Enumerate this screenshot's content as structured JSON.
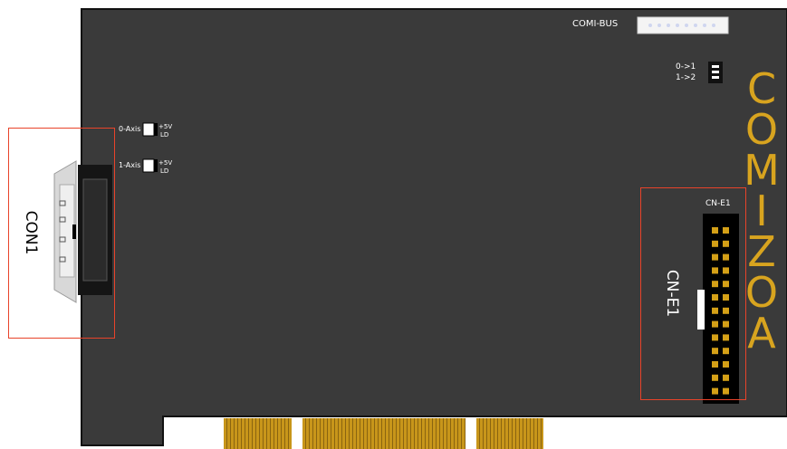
{
  "board": {
    "comi_bus_label": "COMI-BUS",
    "jumper_label_a": "0->1",
    "jumper_label_b": "1->2",
    "axis0_label": "0-Axis",
    "axis1_label": "1-Axis",
    "led_top": "+5V",
    "led_bottom": "LD",
    "brand_letters": [
      "C",
      "O",
      "M",
      "I",
      "Z",
      "O",
      "A"
    ],
    "cne1_header_label": "CN-E1"
  },
  "callouts": {
    "con1_label": "CON1",
    "cne1_label": "CN-E1"
  },
  "colors": {
    "board": "#3a3a3a",
    "brand": "#d8a41f",
    "callout": "#e8432a",
    "gold": "#d4a017"
  }
}
